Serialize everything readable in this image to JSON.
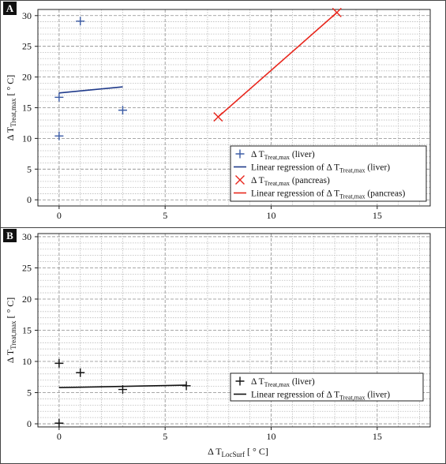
{
  "chart_data": [
    {
      "panel_label": "A",
      "type": "scatter",
      "xlim": [
        -1,
        17.5
      ],
      "ylim": [
        -1,
        31
      ],
      "x_ticks": [
        0,
        5,
        10,
        15
      ],
      "y_ticks": [
        0,
        5,
        10,
        15,
        20,
        25,
        30
      ],
      "xlabel": "",
      "ylabel": {
        "prefix": "Δ T",
        "sub": "Treat,max",
        "unit": "[ ° C]"
      },
      "grid": true,
      "legend_position": "bottom-right",
      "series": [
        {
          "kind": "points",
          "marker": "plus",
          "color": "#3b5ba5",
          "legend": {
            "prefix": "Δ T",
            "sub": "Treat,max",
            "suffix": "(liver)"
          },
          "points": [
            [
              0,
              16.7
            ],
            [
              0,
              10.4
            ],
            [
              1,
              29.1
            ],
            [
              3,
              14.6
            ]
          ]
        },
        {
          "kind": "line",
          "color": "#1f3a8a",
          "legend": {
            "prefix": "Linear regression of  Δ T",
            "sub": "Treat,max",
            "suffix": "(liver)"
          },
          "points": [
            [
              0,
              17.4
            ],
            [
              3,
              18.4
            ]
          ]
        },
        {
          "kind": "points",
          "marker": "x",
          "color": "#e8261c",
          "legend": {
            "prefix": "Δ T",
            "sub": "Treat,max",
            "suffix": "(pancreas)"
          },
          "points": [
            [
              7.5,
              13.5
            ],
            [
              13.1,
              30.5
            ]
          ]
        },
        {
          "kind": "line",
          "color": "#e8261c",
          "legend": {
            "prefix": "Linear regression of  Δ T",
            "sub": "Treat,max",
            "suffix": "(pancreas)"
          },
          "points": [
            [
              7.5,
              13.5
            ],
            [
              13.1,
              30.5
            ]
          ]
        }
      ]
    },
    {
      "panel_label": "B",
      "type": "scatter",
      "xlim": [
        -1,
        17.5
      ],
      "ylim": [
        -0.5,
        30.5
      ],
      "x_ticks": [
        0,
        5,
        10,
        15
      ],
      "y_ticks": [
        0,
        5,
        10,
        15,
        20,
        25,
        30
      ],
      "xlabel": {
        "prefix": "Δ T",
        "sub": "LocSurf",
        "unit": "[ ° C]"
      },
      "ylabel": {
        "prefix": "Δ T",
        "sub": "Treat,max",
        "unit": "[ ° C]"
      },
      "grid": true,
      "legend_position": "bottom-right",
      "series": [
        {
          "kind": "points",
          "marker": "plus",
          "color": "#111111",
          "legend": {
            "prefix": "Δ T",
            "sub": "Treat,max",
            "suffix": "(liver)"
          },
          "points": [
            [
              0,
              9.7
            ],
            [
              0,
              0.1
            ],
            [
              1,
              8.2
            ],
            [
              3,
              5.5
            ],
            [
              6,
              6.1
            ]
          ]
        },
        {
          "kind": "line",
          "color": "#111111",
          "legend": {
            "prefix": "Linear regression of  Δ T",
            "sub": "Treat,max",
            "suffix": "(liver)"
          },
          "points": [
            [
              0,
              5.8
            ],
            [
              6,
              6.2
            ]
          ]
        }
      ]
    }
  ]
}
